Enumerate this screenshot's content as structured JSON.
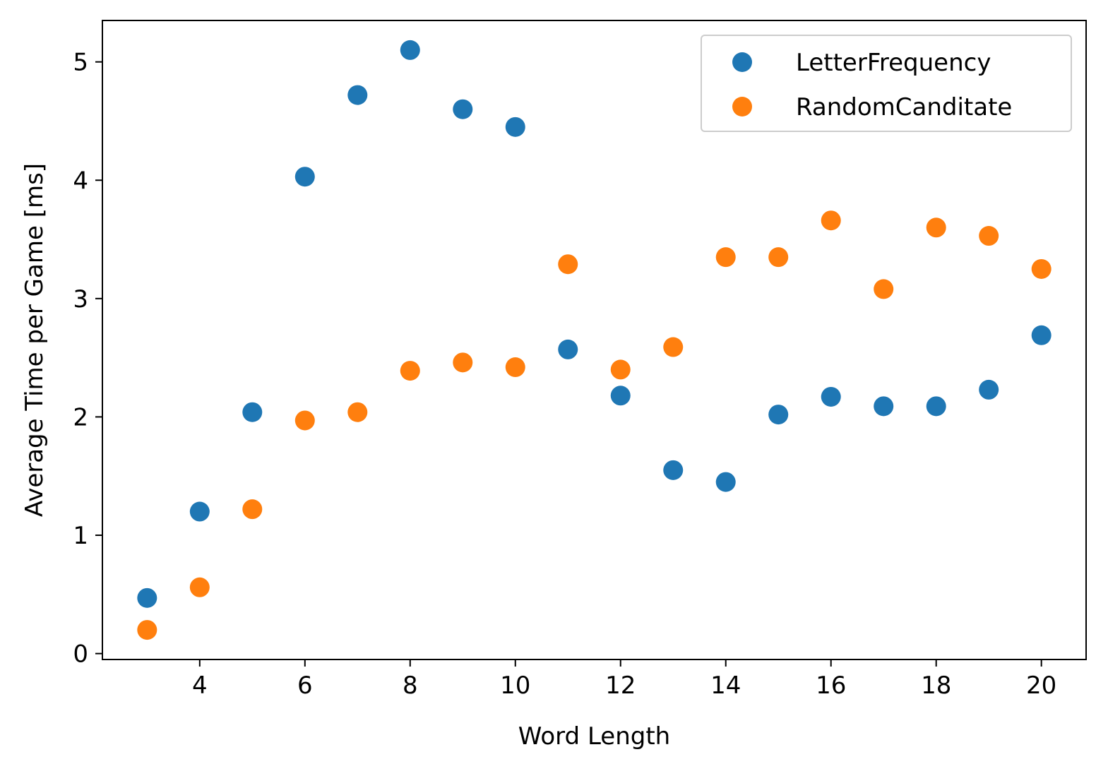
{
  "chart_data": {
    "type": "scatter",
    "title": "",
    "xlabel": "Word Length",
    "ylabel": "Average Time per Game [ms]",
    "xlim": [
      2.15,
      20.85
    ],
    "ylim": [
      -0.05,
      5.35
    ],
    "x_ticks": [
      4,
      6,
      8,
      10,
      12,
      14,
      16,
      18,
      20
    ],
    "y_ticks": [
      0,
      1,
      2,
      3,
      4,
      5
    ],
    "grid": false,
    "legend_position": "top-right",
    "x": [
      3,
      4,
      5,
      6,
      7,
      8,
      9,
      10,
      11,
      12,
      13,
      14,
      15,
      16,
      17,
      18,
      19,
      20
    ],
    "series": [
      {
        "name": "LetterFrequency",
        "color": "#1f77b4",
        "values": [
          0.47,
          1.2,
          2.04,
          4.03,
          4.72,
          5.1,
          4.6,
          4.45,
          2.57,
          2.18,
          1.55,
          1.45,
          2.02,
          2.17,
          2.09,
          2.09,
          2.23,
          2.69
        ]
      },
      {
        "name": "RandomCanditate",
        "color": "#ff7f0e",
        "values": [
          0.2,
          0.56,
          1.22,
          1.97,
          2.04,
          2.39,
          2.46,
          2.42,
          3.29,
          2.4,
          2.59,
          3.35,
          3.35,
          3.66,
          3.08,
          3.6,
          3.53,
          3.25
        ]
      }
    ]
  }
}
